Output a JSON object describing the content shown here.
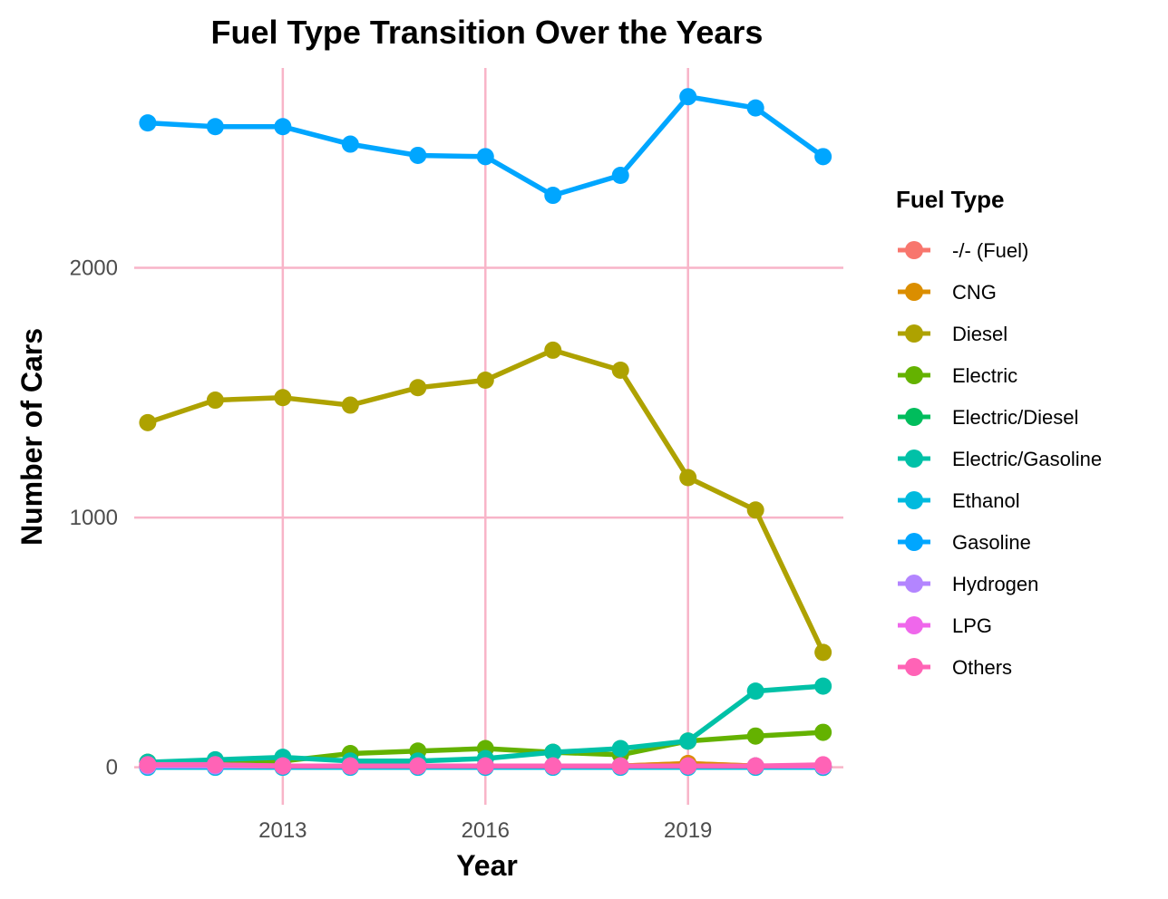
{
  "chart_data": {
    "type": "line",
    "title": "Fuel Type Transition Over the Years",
    "xlabel": "Year",
    "ylabel": "Number of Cars",
    "xlim": [
      2010.8,
      2021.3
    ],
    "ylim": [
      -150,
      2800
    ],
    "x_ticks": [
      2013,
      2016,
      2019
    ],
    "y_ticks": [
      0,
      1000,
      2000
    ],
    "grid": "major only",
    "grid_color": "#f8b4c8",
    "legend_title": "Fuel Type",
    "legend_position": "right",
    "x": [
      2011,
      2012,
      2013,
      2014,
      2015,
      2016,
      2017,
      2018,
      2019,
      2020,
      2021
    ],
    "series": [
      {
        "name": "-/- (Fuel)",
        "color": "#F8766D",
        "values": [
          5,
          5,
          5,
          5,
          5,
          5,
          5,
          5,
          15,
          5,
          0
        ]
      },
      {
        "name": "CNG",
        "color": "#DB8E00",
        "values": [
          10,
          10,
          5,
          5,
          5,
          5,
          5,
          5,
          15,
          5,
          0
        ]
      },
      {
        "name": "Diesel",
        "color": "#AEA200",
        "values": [
          1380,
          1470,
          1480,
          1450,
          1520,
          1550,
          1670,
          1590,
          1160,
          1030,
          460
        ]
      },
      {
        "name": "Electric",
        "color": "#64B200",
        "values": [
          20,
          25,
          25,
          55,
          65,
          75,
          60,
          50,
          105,
          125,
          140
        ]
      },
      {
        "name": "Electric/Diesel",
        "color": "#00BD5C",
        "values": [
          5,
          5,
          5,
          5,
          5,
          5,
          5,
          5,
          5,
          5,
          5
        ]
      },
      {
        "name": "Electric/Gasoline",
        "color": "#00C1A7",
        "values": [
          20,
          30,
          40,
          25,
          25,
          35,
          60,
          75,
          105,
          305,
          325
        ]
      },
      {
        "name": "Ethanol",
        "color": "#00BADE",
        "values": [
          0,
          0,
          0,
          0,
          0,
          0,
          0,
          0,
          0,
          0,
          0
        ]
      },
      {
        "name": "Gasoline",
        "color": "#00A6FF",
        "values": [
          2580,
          2565,
          2565,
          2495,
          2450,
          2445,
          2290,
          2370,
          2685,
          2640,
          2445
        ]
      },
      {
        "name": "Hydrogen",
        "color": "#B385FF",
        "values": [
          5,
          5,
          5,
          5,
          5,
          5,
          5,
          5,
          5,
          5,
          5
        ]
      },
      {
        "name": "LPG",
        "color": "#EF67EB",
        "values": [
          10,
          10,
          5,
          5,
          5,
          5,
          5,
          5,
          5,
          5,
          5
        ]
      },
      {
        "name": "Others",
        "color": "#FF63B6",
        "values": [
          10,
          10,
          5,
          5,
          5,
          5,
          5,
          5,
          5,
          5,
          10
        ]
      }
    ]
  }
}
